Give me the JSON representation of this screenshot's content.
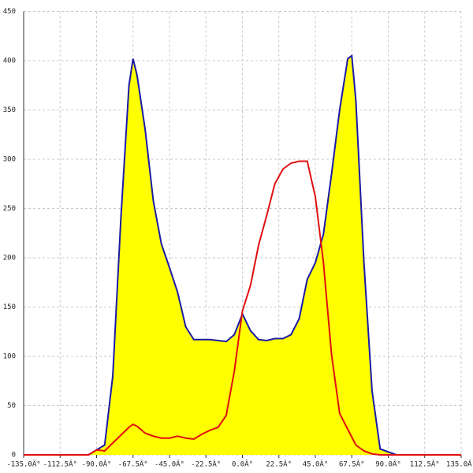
{
  "chart_data": {
    "type": "area",
    "x": [
      -135,
      -100,
      -95,
      -90,
      -85,
      -80,
      -75,
      -70,
      -67.5,
      -65,
      -60,
      -55,
      -50,
      -45,
      -40,
      -35,
      -30,
      -25,
      -20,
      -15,
      -10,
      -5,
      0,
      5,
      10,
      15,
      20,
      25,
      30,
      35,
      40,
      45,
      50,
      55,
      60,
      65,
      67.5,
      70,
      75,
      80,
      85,
      90,
      95,
      100,
      135
    ],
    "series": [
      {
        "color": "#1a1aa8",
        "fill": "#ffff00",
        "values": [
          0,
          0,
          0,
          5,
          10,
          80,
          240,
          375,
          402,
          385,
          330,
          258,
          214,
          190,
          165,
          130,
          117,
          117,
          117,
          116,
          115,
          122,
          143,
          126,
          117,
          116,
          118,
          118,
          122,
          138,
          178,
          195,
          224,
          285,
          350,
          402,
          405,
          360,
          195,
          65,
          6,
          3,
          0,
          0,
          0
        ]
      },
      {
        "color": "#e01010",
        "values": [
          0,
          0,
          0,
          5,
          4,
          12,
          20,
          28,
          31,
          29,
          22,
          19,
          17,
          17,
          19,
          17,
          16,
          21,
          25,
          28,
          40,
          85,
          146,
          172,
          213,
          243,
          275,
          290,
          296,
          298,
          298,
          262,
          195,
          102,
          42,
          26,
          18,
          10,
          4,
          1,
          0,
          0,
          0,
          0,
          0
        ]
      }
    ],
    "xlim": [
      -135,
      135
    ],
    "xticks": [
      {
        "value": -135,
        "label": "-135.0Â°"
      },
      {
        "value": -112.5,
        "label": "-112.5Â°"
      },
      {
        "value": -90,
        "label": "-90.0Â°"
      },
      {
        "value": -67.5,
        "label": "-67.5Â°"
      },
      {
        "value": -45,
        "label": "-45.0Â°"
      },
      {
        "value": -22.5,
        "label": "-22.5Â°"
      },
      {
        "value": 0,
        "label": "0.0Â°"
      },
      {
        "value": 22.5,
        "label": "22.5Â°"
      },
      {
        "value": 45,
        "label": "45.0Â°"
      },
      {
        "value": 67.5,
        "label": "67.5Â°"
      },
      {
        "value": 90,
        "label": "90.0Â°"
      },
      {
        "value": 112.5,
        "label": "112.5Â°"
      },
      {
        "value": 135,
        "label": "135.0Â°"
      }
    ],
    "ylim": [
      0,
      450
    ],
    "yticks": [
      0,
      50,
      100,
      150,
      200,
      250,
      300,
      350,
      400,
      450
    ],
    "grid": true
  }
}
